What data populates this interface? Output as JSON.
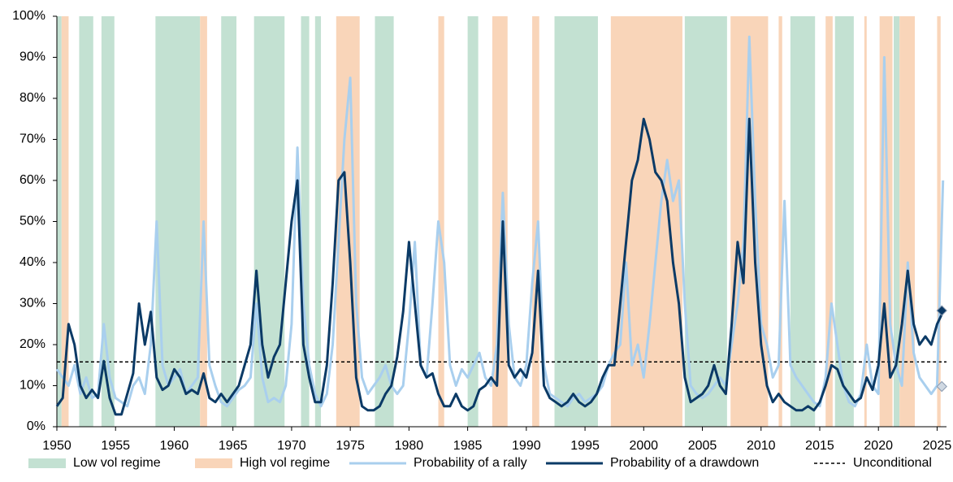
{
  "chart_data": {
    "type": "line",
    "xlim": [
      1950,
      2025.8
    ],
    "ylim": [
      0,
      100
    ],
    "xticks": [
      1950,
      1955,
      1960,
      1965,
      1970,
      1975,
      1980,
      1985,
      1990,
      1995,
      2000,
      2005,
      2010,
      2015,
      2020,
      2025
    ],
    "yticks": [
      {
        "value": 0,
        "label": "0%"
      },
      {
        "value": 10,
        "label": "10%"
      },
      {
        "value": 20,
        "label": "20%"
      },
      {
        "value": 30,
        "label": "30%"
      },
      {
        "value": 40,
        "label": "40%"
      },
      {
        "value": 50,
        "label": "50%"
      },
      {
        "value": 60,
        "label": "60%"
      },
      {
        "value": 70,
        "label": "70%"
      },
      {
        "value": 80,
        "label": "80%"
      },
      {
        "value": 90,
        "label": "90%"
      },
      {
        "value": 100,
        "label": "100%"
      }
    ],
    "legend": "bottom",
    "regimes": [
      {
        "name": "Low vol regime",
        "color": "#c3e1d2",
        "periods": [
          [
            1950,
            1950.4
          ],
          [
            1951.9,
            1953.1
          ],
          [
            1953.8,
            1954.9
          ],
          [
            1958.4,
            1962.2
          ],
          [
            1964,
            1965.3
          ],
          [
            1966.8,
            1969.4
          ],
          [
            1970.8,
            1971.5
          ],
          [
            1972,
            1972.5
          ],
          [
            1977.1,
            1978.7
          ],
          [
            1985,
            1985.9
          ],
          [
            1992.4,
            1996.1
          ],
          [
            2003.5,
            2007.1
          ],
          [
            2012.5,
            2014.6
          ],
          [
            2016.3,
            2017.9
          ],
          [
            2021.3,
            2021.8
          ]
        ]
      },
      {
        "name": "High vol regime",
        "color": "#f9d5b9",
        "periods": [
          [
            1950.4,
            1951
          ],
          [
            1962.2,
            1962.8
          ],
          [
            1973.8,
            1975.8
          ],
          [
            1982.5,
            1983
          ],
          [
            1987.1,
            1988.4
          ],
          [
            1990.5,
            1991.1
          ],
          [
            1997.2,
            2003.3
          ],
          [
            2007.4,
            2010.6
          ],
          [
            2011.5,
            2011.8
          ],
          [
            2015.5,
            2016.1
          ],
          [
            2018.8,
            2019
          ],
          [
            2020.1,
            2021.2
          ],
          [
            2021.8,
            2023.1
          ],
          [
            2025,
            2025.3
          ]
        ]
      }
    ],
    "x": [
      1950,
      1950.5,
      1951,
      1951.5,
      1952,
      1952.5,
      1953,
      1953.5,
      1954,
      1954.5,
      1955,
      1955.5,
      1956,
      1956.5,
      1957,
      1957.5,
      1958,
      1958.5,
      1959,
      1959.5,
      1960,
      1960.5,
      1961,
      1961.5,
      1962,
      1962.5,
      1963,
      1963.5,
      1964,
      1964.5,
      1965,
      1965.5,
      1966,
      1966.5,
      1967,
      1967.5,
      1968,
      1968.5,
      1969,
      1969.5,
      1970,
      1970.5,
      1971,
      1971.5,
      1972,
      1972.5,
      1973,
      1973.5,
      1974,
      1974.5,
      1975,
      1975.5,
      1976,
      1976.5,
      1977,
      1977.5,
      1978,
      1978.5,
      1979,
      1979.5,
      1980,
      1980.5,
      1981,
      1981.5,
      1982,
      1982.5,
      1983,
      1983.5,
      1984,
      1984.5,
      1985,
      1985.5,
      1986,
      1986.5,
      1987,
      1987.5,
      1988,
      1988.5,
      1989,
      1989.5,
      1990,
      1990.5,
      1991,
      1991.5,
      1992,
      1992.5,
      1993,
      1993.5,
      1994,
      1994.5,
      1995,
      1995.5,
      1996,
      1996.5,
      1997,
      1997.5,
      1998,
      1998.5,
      1999,
      1999.5,
      2000,
      2000.5,
      2001,
      2001.5,
      2002,
      2002.5,
      2003,
      2003.5,
      2004,
      2004.5,
      2005,
      2005.5,
      2006,
      2006.5,
      2007,
      2007.5,
      2008,
      2008.5,
      2009,
      2009.5,
      2010,
      2010.5,
      2011,
      2011.5,
      2012,
      2012.5,
      2013,
      2013.5,
      2014,
      2014.5,
      2015,
      2015.5,
      2016,
      2016.5,
      2017,
      2017.5,
      2018,
      2018.5,
      2019,
      2019.5,
      2020,
      2020.5,
      2021,
      2021.5,
      2022,
      2022.5,
      2023,
      2023.5,
      2024,
      2024.5,
      2025,
      2025.5
    ],
    "series": [
      {
        "name": "Probability of a rally",
        "color": "#a9cfee",
        "width": 3,
        "values": [
          14,
          12,
          10,
          15,
          8,
          12,
          7,
          8,
          25,
          12,
          7,
          6,
          5,
          10,
          12,
          8,
          20,
          50,
          15,
          10,
          12,
          14,
          8,
          10,
          12,
          50,
          15,
          10,
          6,
          5,
          7,
          9,
          10,
          12,
          30,
          12,
          6,
          7,
          6,
          10,
          25,
          68,
          30,
          15,
          8,
          5,
          8,
          20,
          45,
          70,
          85,
          30,
          12,
          8,
          10,
          12,
          15,
          10,
          8,
          10,
          25,
          45,
          15,
          12,
          30,
          50,
          40,
          15,
          10,
          14,
          12,
          15,
          18,
          12,
          10,
          20,
          57,
          25,
          12,
          10,
          15,
          35,
          50,
          15,
          8,
          7,
          6,
          5,
          7,
          8,
          6,
          7,
          8,
          10,
          15,
          18,
          20,
          40,
          15,
          20,
          12,
          25,
          40,
          55,
          65,
          55,
          60,
          30,
          10,
          8,
          7,
          8,
          10,
          12,
          10,
          20,
          30,
          45,
          95,
          55,
          25,
          20,
          12,
          15,
          55,
          15,
          12,
          10,
          8,
          6,
          5,
          12,
          30,
          20,
          10,
          6,
          5,
          8,
          20,
          10,
          8,
          90,
          25,
          15,
          10,
          40,
          18,
          12,
          10,
          8,
          10,
          60
        ],
        "end_point": {
          "x": 2025.4,
          "value": 9.8,
          "color": "#cfd8e2"
        }
      },
      {
        "name": "Probability of a drawdown",
        "color": "#0b3a66",
        "width": 3,
        "values": [
          5,
          7,
          25,
          20,
          10,
          7,
          9,
          7,
          16,
          7,
          3,
          3,
          8,
          13,
          30,
          20,
          28,
          12,
          9,
          10,
          14,
          12,
          8,
          9,
          8,
          13,
          7,
          6,
          8,
          6,
          8,
          10,
          15,
          20,
          38,
          20,
          12,
          17,
          20,
          35,
          50,
          60,
          20,
          12,
          6,
          6,
          15,
          35,
          60,
          62,
          40,
          12,
          5,
          4,
          4,
          5,
          8,
          10,
          17,
          28,
          45,
          30,
          15,
          12,
          13,
          8,
          5,
          5,
          8,
          5,
          4,
          5,
          9,
          10,
          12,
          10,
          50,
          15,
          12,
          14,
          12,
          18,
          38,
          10,
          7,
          6,
          5,
          6,
          8,
          6,
          5,
          6,
          8,
          12,
          15,
          15,
          30,
          45,
          60,
          65,
          75,
          70,
          62,
          60,
          55,
          40,
          30,
          12,
          6,
          7,
          8,
          10,
          15,
          10,
          8,
          25,
          45,
          35,
          75,
          40,
          20,
          10,
          6,
          8,
          6,
          5,
          4,
          4,
          5,
          4,
          6,
          10,
          15,
          14,
          10,
          8,
          6,
          7,
          12,
          9,
          15,
          30,
          12,
          15,
          25,
          38,
          25,
          20,
          22,
          20,
          25,
          28
        ],
        "end_point": {
          "x": 2025.4,
          "value": 28.3,
          "color": "#0b3a66"
        }
      }
    ],
    "reference_line": {
      "name": "Unconditional",
      "value": 15.8,
      "color": "#000000"
    }
  }
}
